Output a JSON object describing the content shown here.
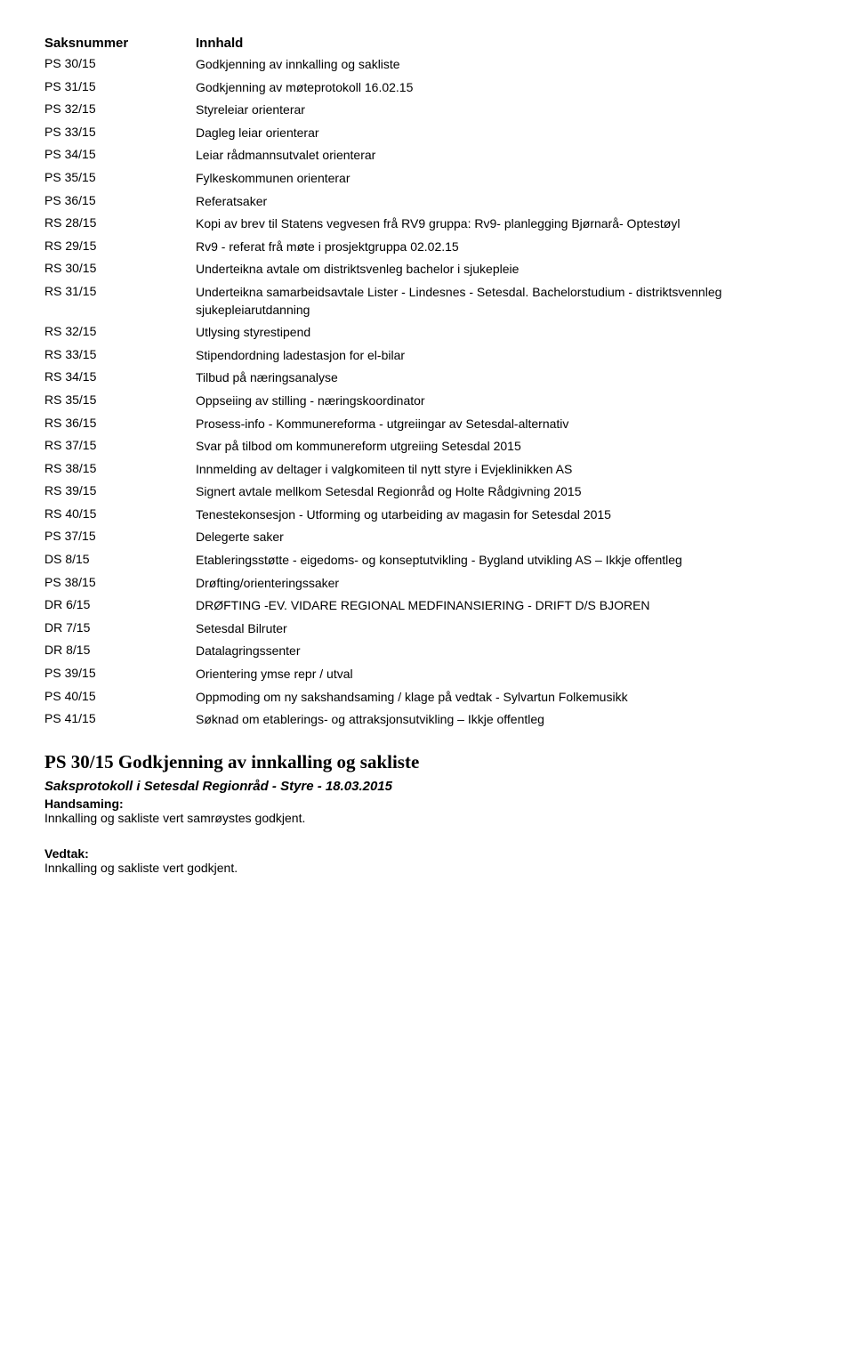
{
  "headers": {
    "col1": "Saksnummer",
    "col2": "Innhald"
  },
  "rows": [
    {
      "id": "PS 30/15",
      "text": "Godkjenning av innkalling og sakliste"
    },
    {
      "id": "PS 31/15",
      "text": "Godkjenning av møteprotokoll 16.02.15"
    },
    {
      "id": "PS 32/15",
      "text": "Styreleiar orienterar"
    },
    {
      "id": "PS 33/15",
      "text": "Dagleg leiar orienterar"
    },
    {
      "id": "PS 34/15",
      "text": "Leiar rådmannsutvalet orienterar"
    },
    {
      "id": "PS 35/15",
      "text": "Fylkeskommunen orienterar"
    },
    {
      "id": "PS 36/15",
      "text": "Referatsaker"
    },
    {
      "id": "RS 28/15",
      "text": "Kopi av brev til Statens vegvesen frå RV9 gruppa: Rv9- planlegging Bjørnarå- Optestøyl"
    },
    {
      "id": "RS 29/15",
      "text": "Rv9 - referat frå møte i prosjektgruppa 02.02.15"
    },
    {
      "id": "RS 30/15",
      "text": "Underteikna avtale om distriktsvenleg bachelor i sjukepleie"
    },
    {
      "id": "RS 31/15",
      "text": "Underteikna samarbeidsavtale Lister - Lindesnes - Setesdal. Bachelorstudium - distriktsvennleg sjukepleiarutdanning"
    },
    {
      "id": "RS 32/15",
      "text": "Utlysing styrestipend"
    },
    {
      "id": "RS 33/15",
      "text": "Stipendordning ladestasjon for el-bilar"
    },
    {
      "id": "RS 34/15",
      "text": "Tilbud på næringsanalyse"
    },
    {
      "id": "RS 35/15",
      "text": "Oppseiing av stilling - næringskoordinator"
    },
    {
      "id": "RS 36/15",
      "text": "Prosess-info - Kommunereforma - utgreiingar av Setesdal-alternativ"
    },
    {
      "id": "RS 37/15",
      "text": "Svar på tilbod om kommunereform utgreiing Setesdal 2015"
    },
    {
      "id": "RS 38/15",
      "text": "Innmelding av deltager i valgkomiteen til nytt styre i Evjeklinikken AS"
    },
    {
      "id": "RS 39/15",
      "text": "Signert avtale mellkom Setesdal Regionråd og Holte Rådgivning 2015"
    },
    {
      "id": "RS 40/15",
      "text": "Tenestekonsesjon - Utforming og utarbeiding av magasin for Setesdal 2015"
    },
    {
      "id": "PS 37/15",
      "text": "Delegerte saker"
    },
    {
      "id": "DS 8/15",
      "text": "Etableringsstøtte  - eigedoms- og konseptutvikling - Bygland utvikling AS – Ikkje offentleg"
    },
    {
      "id": "PS 38/15",
      "text": "Drøfting/orienteringssaker"
    },
    {
      "id": "DR 6/15",
      "text": "DRØFTING  -EV. VIDARE REGIONAL MEDFINANSIERING - DRIFT D/S BJOREN"
    },
    {
      "id": "DR 7/15",
      "text": "Setesdal Bilruter"
    },
    {
      "id": "DR 8/15",
      "text": "Datalagringssenter"
    },
    {
      "id": "PS 39/15",
      "text": "Orientering ymse repr / utval"
    },
    {
      "id": "PS 40/15",
      "text": "Oppmoding om ny sakshandsaming / klage på vedtak - Sylvartun Folkemusikk"
    },
    {
      "id": "PS 41/15",
      "text": "Søknad om etablerings- og attraksjonsutvikling – Ikkje offentleg"
    }
  ],
  "section": {
    "heading": "PS 30/15 Godkjenning av innkalling og sakliste",
    "subheading": "Saksprotokoll i Setesdal Regionråd - Styre - 18.03.2015",
    "handsaming_label": "Handsaming:",
    "handsaming_text": "Innkalling og sakliste vert samrøystes godkjent.",
    "vedtak_label": "Vedtak:",
    "vedtak_text": "Innkalling og sakliste vert  godkjent."
  }
}
